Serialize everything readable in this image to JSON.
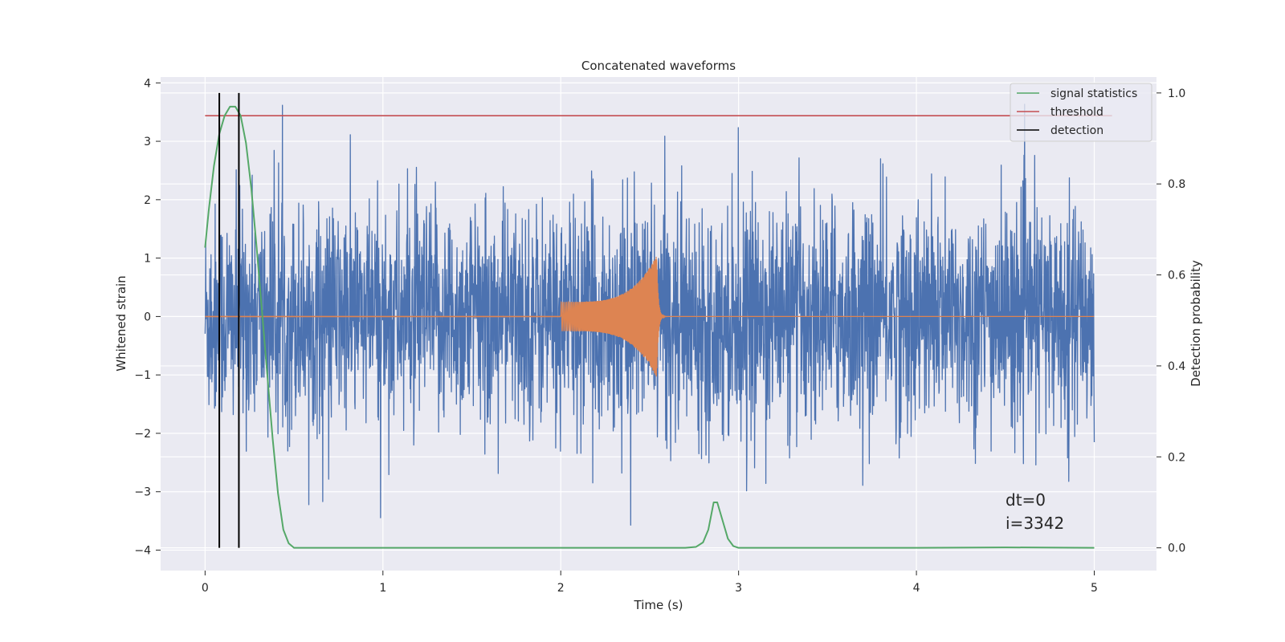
{
  "chart_data": {
    "type": "line",
    "title": "Concatenated waveforms",
    "xlabel": "Time (s)",
    "ylabel": "Whitened strain",
    "ylabel_right": "Detection probability",
    "xlim": [
      -0.25,
      5.35
    ],
    "ylim": [
      -4.35,
      4.1
    ],
    "ylim_right": [
      -0.05,
      1.035
    ],
    "x_ticks": [
      0,
      1,
      2,
      3,
      4,
      5
    ],
    "y_ticks": [
      -4,
      -3,
      -2,
      -1,
      0,
      1,
      2,
      3,
      4
    ],
    "y_ticks_right": [
      0.0,
      0.2,
      0.4,
      0.6,
      0.8,
      1.0
    ],
    "x_tick_labels": [
      "0",
      "1",
      "2",
      "3",
      "4",
      "5"
    ],
    "y_tick_labels": [
      "−4",
      "−3",
      "−2",
      "−1",
      "0",
      "1",
      "2",
      "3",
      "4"
    ],
    "y_tick_labels_right": [
      "0.0",
      "0.2",
      "0.4",
      "0.6",
      "0.8",
      "1.0"
    ],
    "grid": true,
    "legend_position": "top-right",
    "series": [
      {
        "name": "",
        "axis": "left",
        "color": "#4c72b0",
        "kind": "noise",
        "x_range": [
          0,
          5
        ],
        "typical_amplitude": 1.0,
        "max_value": 3.7,
        "min_value": -3.75
      },
      {
        "name": "",
        "axis": "left",
        "color": "#dd8452",
        "kind": "chirp",
        "start": 2.0,
        "peak": 2.54,
        "end": 2.6,
        "start_amplitude": 0.25,
        "peak_amplitude": 1.05
      },
      {
        "name": "signal statistics",
        "axis": "right",
        "color": "#55a868",
        "x": [
          0.0,
          0.02,
          0.05,
          0.08,
          0.11,
          0.14,
          0.17,
          0.2,
          0.23,
          0.26,
          0.29,
          0.32,
          0.35,
          0.38,
          0.41,
          0.44,
          0.47,
          0.5,
          0.55,
          1.0,
          2.0,
          2.7,
          2.76,
          2.8,
          2.83,
          2.86,
          2.88,
          2.91,
          2.94,
          2.97,
          3.0,
          4.0,
          4.5,
          5.0
        ],
        "y": [
          0.66,
          0.74,
          0.84,
          0.91,
          0.95,
          0.97,
          0.97,
          0.95,
          0.89,
          0.79,
          0.66,
          0.52,
          0.38,
          0.24,
          0.12,
          0.04,
          0.01,
          0.0,
          0.0,
          0.0,
          0.0,
          0.0,
          0.002,
          0.012,
          0.04,
          0.1,
          0.1,
          0.06,
          0.02,
          0.004,
          0.0,
          0.0,
          0.001,
          0.0
        ]
      },
      {
        "name": "threshold",
        "axis": "right",
        "color": "#c44e52",
        "x": [
          0.0,
          5.1
        ],
        "y": [
          0.95,
          0.95
        ]
      },
      {
        "name": "detection",
        "axis": "right",
        "color": "#000000",
        "x": [
          0.08,
          0.19
        ],
        "y_span": [
          0.0,
          1.0
        ]
      }
    ],
    "annotations": [
      "dt=0",
      "i=3342"
    ]
  }
}
